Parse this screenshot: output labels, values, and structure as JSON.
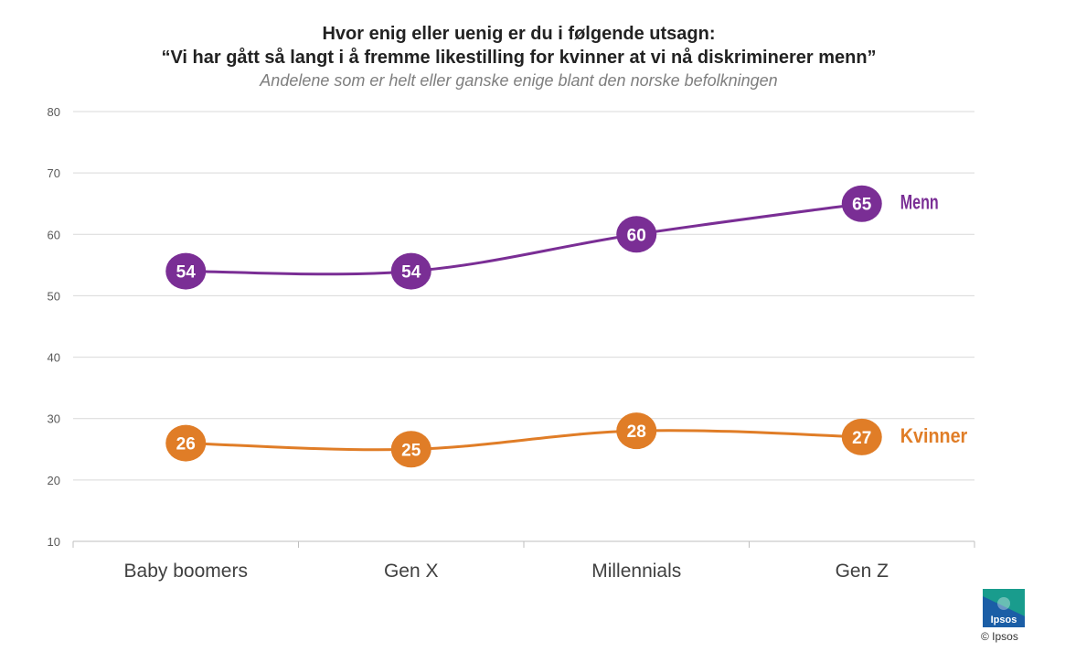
{
  "chart_data": {
    "type": "line",
    "title": "Hvor enig eller uenig er du i følgende utsagn:",
    "title_line2": "“Vi har gått så langt i å fremme likestilling for kvinner at vi nå diskriminerer menn”",
    "subtitle": "Andelene som er helt eller ganske enige blant den norske befolkningen",
    "categories": [
      "Baby boomers",
      "Gen X",
      "Millennials",
      "Gen Z"
    ],
    "series": [
      {
        "name": "Menn",
        "values": [
          54,
          54,
          60,
          65
        ],
        "color": "#7a2e95"
      },
      {
        "name": "Kvinner",
        "values": [
          26,
          25,
          28,
          27
        ],
        "color": "#e07d27"
      }
    ],
    "ylim": [
      10,
      80
    ],
    "yticks": [
      10,
      20,
      30,
      40,
      50,
      60,
      70,
      80
    ],
    "grid": true,
    "legend": "inline-right"
  },
  "brand": {
    "logo_text": "Ipsos",
    "copyright": "© Ipsos",
    "logo_color": "#1b5ea6",
    "logo_accent": "#19a38b"
  }
}
